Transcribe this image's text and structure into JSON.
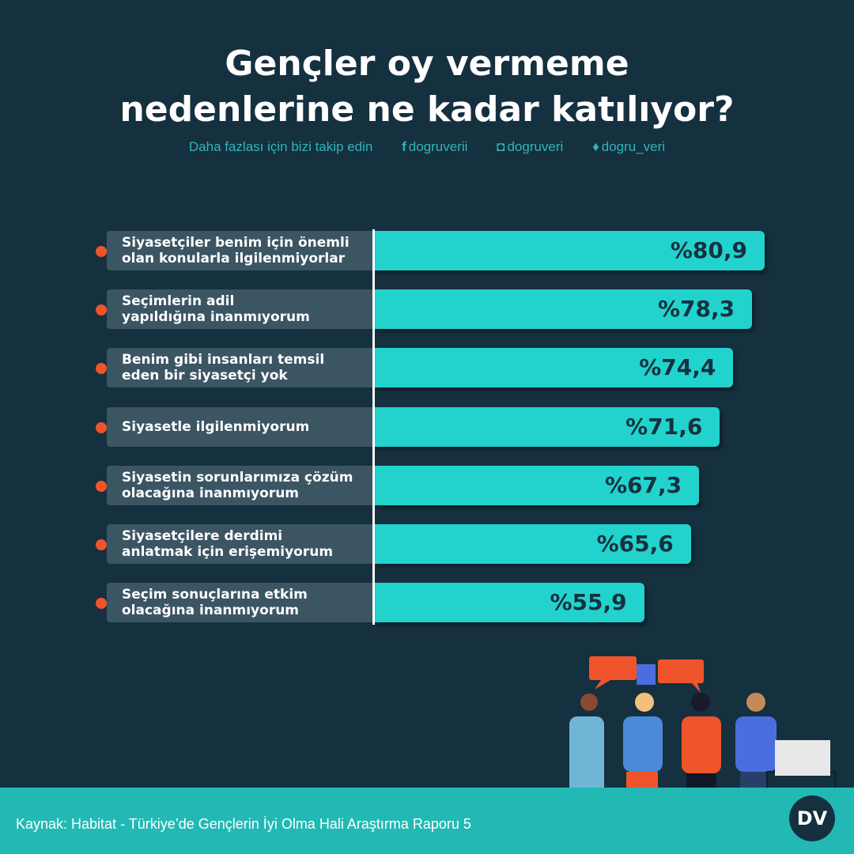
{
  "title_line1": "Gençler oy vermeme",
  "title_line2": "nedenlerine ne kadar katılıyor?",
  "social": {
    "follow_text": "Daha fazlası için bizi takip edin",
    "facebook": "dogruverii",
    "instagram": "dogruveri",
    "twitter": "dogru_veri"
  },
  "source": "Kaynak: Habitat - Türkiye’de Gençlerin İyi Olma Hali Araştırma Raporu 5",
  "logo_text": "DV",
  "colors": {
    "background": "#15303f",
    "bar": "#22d3cd",
    "bullet": "#f0542a",
    "footer": "#22b9b5"
  },
  "chart_data": {
    "type": "bar",
    "orientation": "horizontal",
    "categories": [
      "Siyasetçiler benim için önemli\nolan konularla ilgilenmiyorlar",
      "Seçimlerin adil\nyapıldığına inanmıyorum",
      "Benim gibi insanları temsil\neden bir siyasetçi yok",
      "Siyasetle ilgilenmiyorum",
      "Siyasetin sorunlarımıza çözüm\nolacağına inanmıyorum",
      "Siyasetçilere derdimi\nanlatmak için erişemiyorum",
      "Seçim sonuçlarına etkim\nolacağına inanmıyorum"
    ],
    "values": [
      80.9,
      78.3,
      74.4,
      71.6,
      67.3,
      65.6,
      55.9
    ],
    "value_labels": [
      "%80,9",
      "%78,3",
      "%74,4",
      "%71,6",
      "%67,3",
      "%65,6",
      "%55,9"
    ]
  }
}
